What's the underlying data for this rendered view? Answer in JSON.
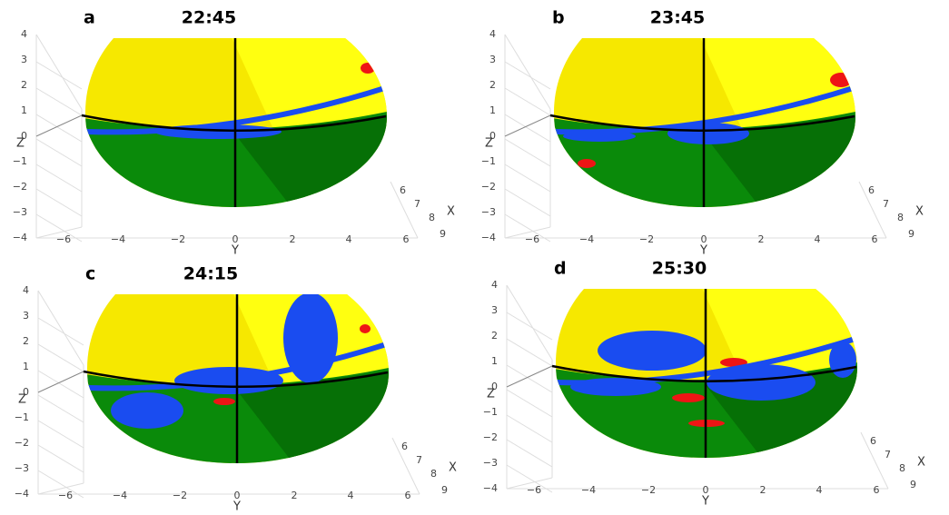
{
  "panels": [
    {
      "letter": "a",
      "time": "22:45"
    },
    {
      "letter": "b",
      "time": "23:45"
    },
    {
      "letter": "c",
      "time": "24:15"
    },
    {
      "letter": "d",
      "time": "25:30"
    }
  ],
  "axes": {
    "z_label": "Z",
    "y_label": "Y",
    "x_label": "X",
    "z_ticks": [
      "4",
      "3",
      "2",
      "1",
      "0",
      "−1",
      "−2",
      "−3",
      "−4"
    ],
    "y_ticks": [
      "−6",
      "−4",
      "−2",
      "0",
      "2",
      "4",
      "6"
    ],
    "x_ticks": [
      "6",
      "7",
      "8",
      "9"
    ]
  }
}
